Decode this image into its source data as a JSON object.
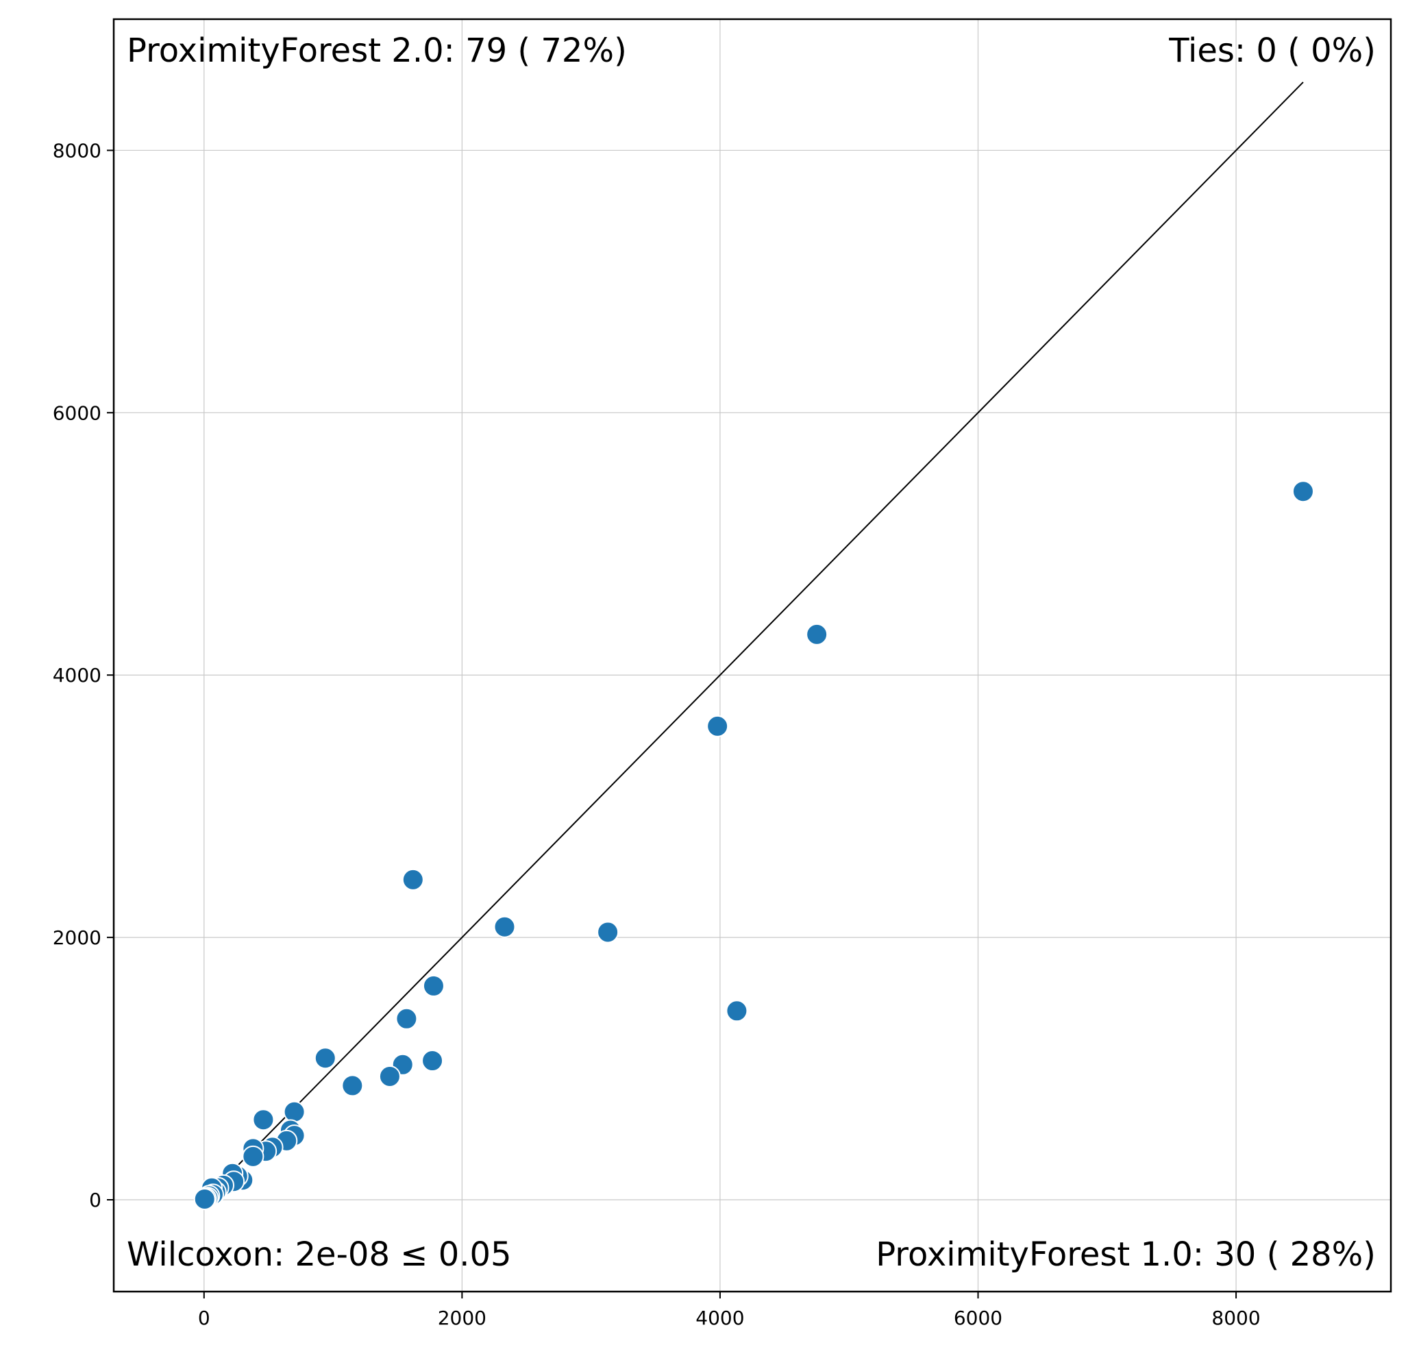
{
  "chart_data": {
    "type": "scatter",
    "title": "",
    "xlabel": "",
    "ylabel": "",
    "xlim": [
      -700,
      9200
    ],
    "ylim": [
      -700,
      9000
    ],
    "xticks": [
      0,
      2000,
      4000,
      6000,
      8000
    ],
    "yticks": [
      0,
      2000,
      4000,
      6000,
      8000
    ],
    "xtick_labels": [
      "0",
      "2000",
      "4000",
      "6000",
      "8000"
    ],
    "ytick_labels": [
      "0",
      "2000",
      "4000",
      "6000",
      "8000"
    ],
    "grid": true,
    "diagonal_line": [
      [
        0,
        0
      ],
      [
        8520,
        8520
      ]
    ],
    "point_color": "#1f77b4",
    "annotations": {
      "top_left": "ProximityForest 2.0: 79 ( 72%)",
      "top_right": "Ties: 0 (  0%)",
      "bottom_left": "Wilcoxon: 2e-08 ≤ 0.05",
      "bottom_right": "ProximityForest 1.0: 30 ( 28%)"
    },
    "points": [
      {
        "x": 8520,
        "y": 5400
      },
      {
        "x": 4750,
        "y": 4310
      },
      {
        "x": 3980,
        "y": 3610
      },
      {
        "x": 4130,
        "y": 1440
      },
      {
        "x": 3130,
        "y": 2040
      },
      {
        "x": 2330,
        "y": 2080
      },
      {
        "x": 1620,
        "y": 2440
      },
      {
        "x": 1780,
        "y": 1630
      },
      {
        "x": 1570,
        "y": 1380
      },
      {
        "x": 1770,
        "y": 1060
      },
      {
        "x": 1540,
        "y": 1030
      },
      {
        "x": 1440,
        "y": 940
      },
      {
        "x": 1150,
        "y": 870
      },
      {
        "x": 940,
        "y": 1080
      },
      {
        "x": 700,
        "y": 670
      },
      {
        "x": 670,
        "y": 530
      },
      {
        "x": 700,
        "y": 490
      },
      {
        "x": 640,
        "y": 450
      },
      {
        "x": 460,
        "y": 610
      },
      {
        "x": 530,
        "y": 400
      },
      {
        "x": 480,
        "y": 370
      },
      {
        "x": 380,
        "y": 390
      },
      {
        "x": 380,
        "y": 330
      },
      {
        "x": 300,
        "y": 150
      },
      {
        "x": 260,
        "y": 180
      },
      {
        "x": 220,
        "y": 200
      },
      {
        "x": 230,
        "y": 140
      },
      {
        "x": 150,
        "y": 110
      },
      {
        "x": 110,
        "y": 90
      },
      {
        "x": 90,
        "y": 60
      },
      {
        "x": 60,
        "y": 90
      },
      {
        "x": 70,
        "y": 40
      },
      {
        "x": 40,
        "y": 30
      },
      {
        "x": 30,
        "y": 15
      },
      {
        "x": 15,
        "y": 10
      },
      {
        "x": 5,
        "y": 5
      }
    ]
  }
}
